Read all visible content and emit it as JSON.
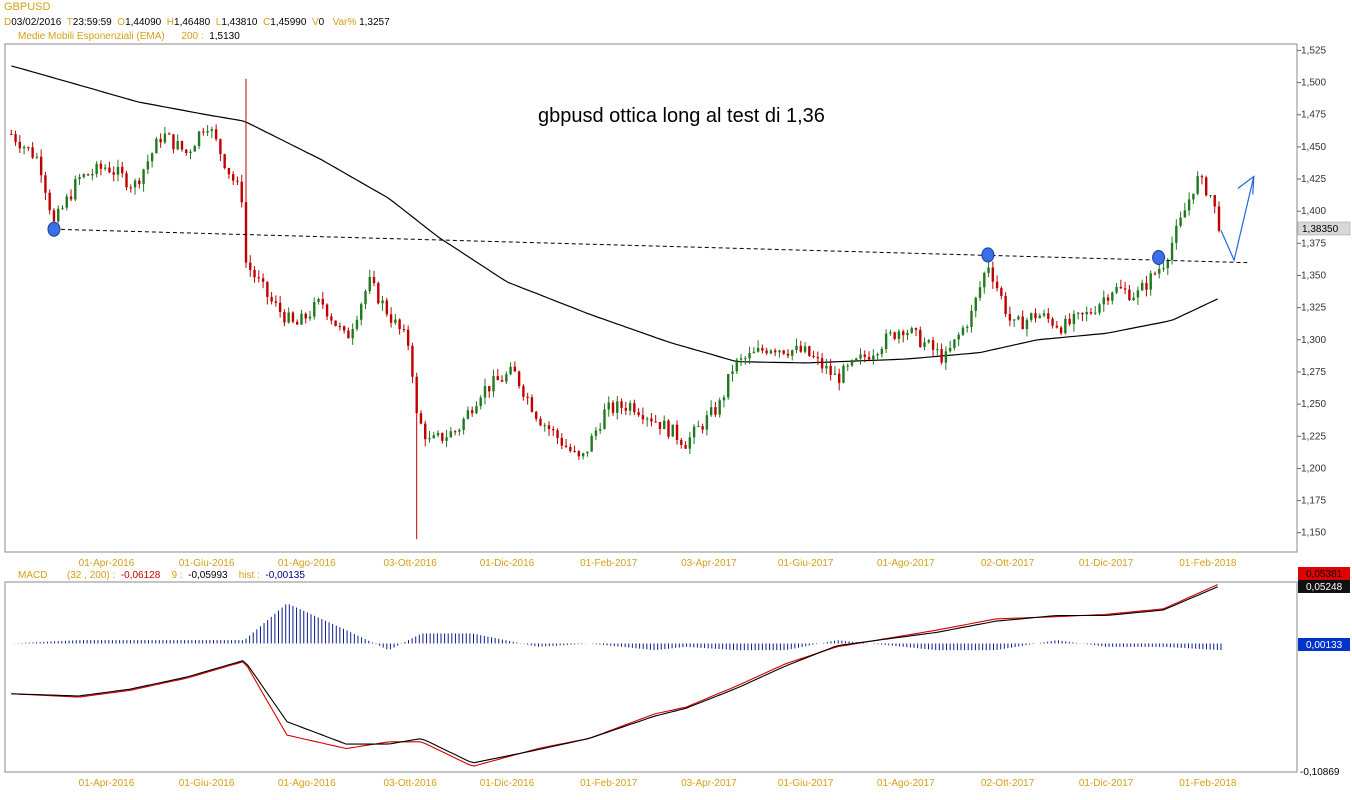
{
  "header": {
    "symbol": "GBPUSD",
    "date_label": "D",
    "date": "03/02/2016",
    "time_label": "T",
    "time": "23:59:59",
    "open_label": "O",
    "open": "1,44090",
    "high_label": "H",
    "high": "1,46480",
    "low_label": "L",
    "low": "1,43810",
    "close_label": "C",
    "close": "1,45990",
    "volume_label": "V",
    "volume": "0",
    "var_label": "Var%",
    "var": "1,3257"
  },
  "ema_legend": {
    "label": "Medie Mobili Esponenziali (EMA)",
    "period": "200 :",
    "value": "1,5130"
  },
  "macd_legend": {
    "label": "MACD",
    "params": "(32 , 200) :",
    "macd_value": "-0,06128",
    "signal_label": "9 :",
    "signal_value": "-0,05993",
    "hist_label": "hist :",
    "hist_value": "-0,00135"
  },
  "annotation": "gbpusd ottica long al test di 1,36",
  "current_price_tag": "1,38350",
  "macd_tags": {
    "top_red": "0,05381",
    "top_black": "0,05248",
    "hist": "0,00133",
    "bottom": "-0,10869"
  },
  "colors": {
    "up_candle": "#1f7a1f",
    "down_candle": "#c00000",
    "ema": "#000000",
    "macd_line": "#000000",
    "signal_line": "#d40000",
    "histogram": "#0a1a8c",
    "axis_label": "#d4a017",
    "marker": "#3a6fe8",
    "arrow": "#2266dd"
  },
  "chart_data": {
    "type": "candlestick",
    "title": "GBPUSD",
    "x_ticks": [
      "01-Apr-2016",
      "01-Giu-2016",
      "01-Ago-2016",
      "03-Ott-2016",
      "01-Dic-2016",
      "01-Feb-2017",
      "03-Apr-2017",
      "01-Giu-2017",
      "01-Ago-2017",
      "02-Ott-2017",
      "01-Dic-2017",
      "01-Feb-2018"
    ],
    "price_ticks": [
      "1,525",
      "1,500",
      "1,475",
      "1,450",
      "1,425",
      "1,400",
      "1,375",
      "1,350",
      "1,325",
      "1,300",
      "1,275",
      "1,250",
      "1,225",
      "1,200",
      "1,175",
      "1,150"
    ],
    "ylim": [
      1.135,
      1.53
    ],
    "close_path": [
      {
        "date": "2016-02-03",
        "close": 1.46
      },
      {
        "date": "2016-02-20",
        "close": 1.44
      },
      {
        "date": "2016-02-29",
        "close": 1.39
      },
      {
        "date": "2016-03-15",
        "close": 1.425
      },
      {
        "date": "2016-04-01",
        "close": 1.435
      },
      {
        "date": "2016-04-18",
        "close": 1.42
      },
      {
        "date": "2016-05-05",
        "close": 1.46
      },
      {
        "date": "2016-05-20",
        "close": 1.445
      },
      {
        "date": "2016-06-01",
        "close": 1.47
      },
      {
        "date": "2016-06-15",
        "close": 1.43
      },
      {
        "date": "2016-06-23",
        "close": 1.41
      },
      {
        "date": "2016-06-24",
        "close": 1.5
      },
      {
        "date": "2016-06-25",
        "close": 1.36
      },
      {
        "date": "2016-07-10",
        "close": 1.33
      },
      {
        "date": "2016-07-25",
        "close": 1.31
      },
      {
        "date": "2016-08-10",
        "close": 1.33
      },
      {
        "date": "2016-08-25",
        "close": 1.3
      },
      {
        "date": "2016-09-08",
        "close": 1.345
      },
      {
        "date": "2016-09-20",
        "close": 1.32
      },
      {
        "date": "2016-10-03",
        "close": 1.295
      },
      {
        "date": "2016-10-07",
        "close": 1.24
      },
      {
        "date": "2016-10-15",
        "close": 1.22
      },
      {
        "date": "2016-11-01",
        "close": 1.23
      },
      {
        "date": "2016-11-15",
        "close": 1.26
      },
      {
        "date": "2016-12-05",
        "close": 1.275
      },
      {
        "date": "2016-12-20",
        "close": 1.24
      },
      {
        "date": "2017-01-15",
        "close": 1.205
      },
      {
        "date": "2017-01-30",
        "close": 1.245
      },
      {
        "date": "2017-02-15",
        "close": 1.25
      },
      {
        "date": "2017-03-10",
        "close": 1.23
      },
      {
        "date": "2017-03-20",
        "close": 1.22
      },
      {
        "date": "2017-04-10",
        "close": 1.25
      },
      {
        "date": "2017-04-18",
        "close": 1.28
      },
      {
        "date": "2017-05-10",
        "close": 1.295
      },
      {
        "date": "2017-06-01",
        "close": 1.29
      },
      {
        "date": "2017-06-20",
        "close": 1.27
      },
      {
        "date": "2017-07-10",
        "close": 1.29
      },
      {
        "date": "2017-07-30",
        "close": 1.31
      },
      {
        "date": "2017-08-25",
        "close": 1.285
      },
      {
        "date": "2017-09-10",
        "close": 1.32
      },
      {
        "date": "2017-09-20",
        "close": 1.36
      },
      {
        "date": "2017-10-05",
        "close": 1.31
      },
      {
        "date": "2017-10-20",
        "close": 1.32
      },
      {
        "date": "2017-11-05",
        "close": 1.31
      },
      {
        "date": "2017-11-20",
        "close": 1.32
      },
      {
        "date": "2017-12-05",
        "close": 1.34
      },
      {
        "date": "2017-12-20",
        "close": 1.335
      },
      {
        "date": "2018-01-05",
        "close": 1.36
      },
      {
        "date": "2018-01-15",
        "close": 1.39
      },
      {
        "date": "2018-01-25",
        "close": 1.425
      },
      {
        "date": "2018-02-02",
        "close": 1.415
      },
      {
        "date": "2018-02-09",
        "close": 1.385
      }
    ],
    "ema200": [
      {
        "date": "2016-02-03",
        "value": 1.513
      },
      {
        "date": "2016-03-10",
        "value": 1.5
      },
      {
        "date": "2016-04-20",
        "value": 1.485
      },
      {
        "date": "2016-06-01",
        "value": 1.475
      },
      {
        "date": "2016-06-24",
        "value": 1.47
      },
      {
        "date": "2016-08-10",
        "value": 1.44
      },
      {
        "date": "2016-09-20",
        "value": 1.41
      },
      {
        "date": "2016-10-20",
        "value": 1.38
      },
      {
        "date": "2016-12-01",
        "value": 1.345
      },
      {
        "date": "2017-01-20",
        "value": 1.32
      },
      {
        "date": "2017-03-10",
        "value": 1.298
      },
      {
        "date": "2017-04-20",
        "value": 1.283
      },
      {
        "date": "2017-06-01",
        "value": 1.282
      },
      {
        "date": "2017-08-01",
        "value": 1.285
      },
      {
        "date": "2017-09-15",
        "value": 1.29
      },
      {
        "date": "2017-10-20",
        "value": 1.3
      },
      {
        "date": "2017-12-01",
        "value": 1.305
      },
      {
        "date": "2018-01-10",
        "value": 1.315
      },
      {
        "date": "2018-02-09",
        "value": 1.333
      }
    ],
    "support_line": {
      "from": {
        "date": "2016-02-29",
        "value": 1.386
      },
      "to": {
        "date": "2018-02-25",
        "value": 1.36
      }
    },
    "markers": [
      {
        "date": "2016-02-29",
        "value": 1.386
      },
      {
        "date": "2017-09-20",
        "value": 1.366
      },
      {
        "date": "2018-01-02",
        "value": 1.364
      }
    ],
    "projection": [
      {
        "date": "2018-02-09",
        "value": 1.385
      },
      {
        "date": "2018-02-17",
        "value": 1.362
      },
      {
        "date": "2018-03-01",
        "value": 1.427
      }
    ],
    "macd": {
      "ylim": [
        -0.115,
        0.055
      ],
      "macd_path": [
        {
          "date": "2016-02-03",
          "value": -0.045
        },
        {
          "date": "2016-03-15",
          "value": -0.047
        },
        {
          "date": "2016-04-15",
          "value": -0.041
        },
        {
          "date": "2016-05-20",
          "value": -0.03
        },
        {
          "date": "2016-06-24",
          "value": -0.015
        },
        {
          "date": "2016-07-20",
          "value": -0.07
        },
        {
          "date": "2016-08-25",
          "value": -0.09
        },
        {
          "date": "2016-09-20",
          "value": -0.09
        },
        {
          "date": "2016-10-10",
          "value": -0.085
        },
        {
          "date": "2016-11-10",
          "value": -0.107
        },
        {
          "date": "2016-12-20",
          "value": -0.095
        },
        {
          "date": "2017-01-20",
          "value": -0.085
        },
        {
          "date": "2017-03-01",
          "value": -0.065
        },
        {
          "date": "2017-03-20",
          "value": -0.058
        },
        {
          "date": "2017-04-20",
          "value": -0.04
        },
        {
          "date": "2017-05-20",
          "value": -0.02
        },
        {
          "date": "2017-06-20",
          "value": -0.002
        },
        {
          "date": "2017-08-20",
          "value": 0.01
        },
        {
          "date": "2017-09-25",
          "value": 0.02
        },
        {
          "date": "2017-11-01",
          "value": 0.025
        },
        {
          "date": "2017-12-01",
          "value": 0.025
        },
        {
          "date": "2018-01-05",
          "value": 0.03
        },
        {
          "date": "2018-02-09",
          "value": 0.052
        }
      ],
      "signal_path": [
        {
          "date": "2016-02-03",
          "value": -0.045
        },
        {
          "date": "2016-03-15",
          "value": -0.048
        },
        {
          "date": "2016-04-15",
          "value": -0.042
        },
        {
          "date": "2016-05-20",
          "value": -0.031
        },
        {
          "date": "2016-06-24",
          "value": -0.016
        },
        {
          "date": "2016-07-20",
          "value": -0.082
        },
        {
          "date": "2016-08-25",
          "value": -0.094
        },
        {
          "date": "2016-09-20",
          "value": -0.088
        },
        {
          "date": "2016-10-10",
          "value": -0.088
        },
        {
          "date": "2016-11-10",
          "value": -0.11
        },
        {
          "date": "2016-12-20",
          "value": -0.094
        },
        {
          "date": "2017-01-20",
          "value": -0.085
        },
        {
          "date": "2017-03-01",
          "value": -0.063
        },
        {
          "date": "2017-03-20",
          "value": -0.057
        },
        {
          "date": "2017-04-20",
          "value": -0.038
        },
        {
          "date": "2017-05-20",
          "value": -0.018
        },
        {
          "date": "2017-06-20",
          "value": -0.003
        },
        {
          "date": "2017-08-20",
          "value": 0.012
        },
        {
          "date": "2017-09-25",
          "value": 0.022
        },
        {
          "date": "2017-11-01",
          "value": 0.024
        },
        {
          "date": "2017-12-01",
          "value": 0.026
        },
        {
          "date": "2018-01-05",
          "value": 0.031
        },
        {
          "date": "2018-02-09",
          "value": 0.054
        }
      ]
    }
  }
}
